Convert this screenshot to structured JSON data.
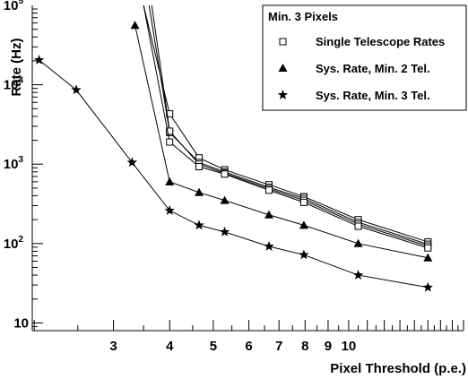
{
  "chart_data": {
    "type": "line",
    "title": "",
    "xlabel": "Pixel Threshold (p.e.)",
    "ylabel": "Rate (Hz)",
    "x_scale": "log",
    "y_scale": "log",
    "xlim": [
      1.98,
      18
    ],
    "ylim": [
      8,
      100000
    ],
    "x_ticks": [
      "3",
      "4",
      "5",
      "6",
      "7",
      "8",
      "9",
      "10"
    ],
    "y_ticks": [
      {
        "base": "10",
        "exp": ""
      },
      {
        "base": "10",
        "exp": "2"
      },
      {
        "base": "10",
        "exp": "3"
      },
      {
        "base": "10",
        "exp": "4"
      },
      {
        "base": "10",
        "exp": "5"
      }
    ],
    "legend": {
      "title": "Min. 3 Pixels",
      "position": "top-right",
      "entries": [
        "Single Telescope Rates",
        "Sys. Rate, Min. 2 Tel.",
        "Sys. Rate, Min. 3 Tel."
      ]
    },
    "series": [
      {
        "name": "Single Telescope Rates",
        "marker": "square",
        "x": [
          3.5,
          4,
          4.65,
          5.3,
          6.65,
          7.95,
          10.5,
          15.0
        ],
        "values": [
          100000,
          4300,
          1200,
          850,
          550,
          390,
          200,
          105
        ]
      },
      {
        "name": "Single Telescope Rates",
        "marker": "square",
        "x": [
          3.6,
          4,
          4.65,
          5.3,
          6.65,
          7.95,
          10.5,
          15.0
        ],
        "values": [
          100000,
          2500,
          1050,
          800,
          510,
          370,
          185,
          98
        ]
      },
      {
        "name": "Single Telescope Rates",
        "marker": "square",
        "x": [
          3.65,
          4,
          4.65,
          5.3,
          6.65,
          7.95,
          10.5,
          15.0
        ],
        "values": [
          100000,
          2600,
          1000,
          770,
          490,
          350,
          175,
          93
        ]
      },
      {
        "name": "Single Telescope Rates",
        "marker": "square",
        "x": [
          3.5,
          4,
          4.65,
          5.3,
          6.65,
          7.95,
          10.5,
          15.0
        ],
        "values": [
          100000,
          1900,
          930,
          750,
          470,
          330,
          165,
          88
        ]
      },
      {
        "name": "Sys. Rate, Min. 2 Tel.",
        "marker": "triangle",
        "x": [
          3.35,
          4,
          4.65,
          5.3,
          6.65,
          7.95,
          10.5,
          15.0
        ],
        "values": [
          56000,
          600,
          440,
          350,
          230,
          170,
          100,
          66
        ]
      },
      {
        "name": "Sys. Rate, Min. 3 Tel.",
        "marker": "star",
        "x": [
          2.05,
          2.48,
          3.3,
          4,
          4.65,
          5.3,
          6.65,
          7.95,
          10.5,
          15.0
        ],
        "values": [
          20500,
          8600,
          1050,
          260,
          170,
          140,
          92,
          72,
          40,
          28
        ]
      }
    ]
  }
}
